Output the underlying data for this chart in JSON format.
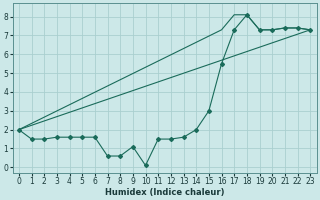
{
  "xlabel": "Humidex (Indice chaleur)",
  "bg_color": "#cce8e8",
  "grid_color": "#aacfcf",
  "line_color": "#1a6b5a",
  "ylim": [
    -0.3,
    8.7
  ],
  "xlim": [
    -0.5,
    23.5
  ],
  "yticks": [
    0,
    1,
    2,
    3,
    4,
    5,
    6,
    7,
    8
  ],
  "xticks": [
    0,
    1,
    2,
    3,
    4,
    5,
    6,
    7,
    8,
    9,
    10,
    11,
    12,
    13,
    14,
    15,
    16,
    17,
    18,
    19,
    20,
    21,
    22,
    23
  ],
  "line1_x": [
    0,
    1,
    2,
    3,
    4,
    5,
    6,
    7,
    8,
    9,
    10,
    11,
    12,
    13,
    14,
    15,
    16,
    17,
    18,
    19,
    20,
    21,
    22,
    23
  ],
  "line1_y": [
    2.0,
    1.5,
    1.5,
    1.6,
    1.6,
    1.6,
    1.6,
    0.6,
    0.6,
    1.1,
    0.1,
    1.5,
    1.5,
    1.6,
    2.0,
    3.0,
    5.5,
    7.3,
    8.1,
    7.3,
    7.3,
    7.4,
    7.4,
    7.3
  ],
  "line2_x": [
    0,
    23
  ],
  "line2_y": [
    2.0,
    7.3
  ],
  "line3_x": [
    0,
    16,
    17,
    18,
    19,
    20,
    21,
    22,
    23
  ],
  "line3_y": [
    2.0,
    7.3,
    8.1,
    8.1,
    7.3,
    7.3,
    7.4,
    7.4,
    7.3
  ]
}
